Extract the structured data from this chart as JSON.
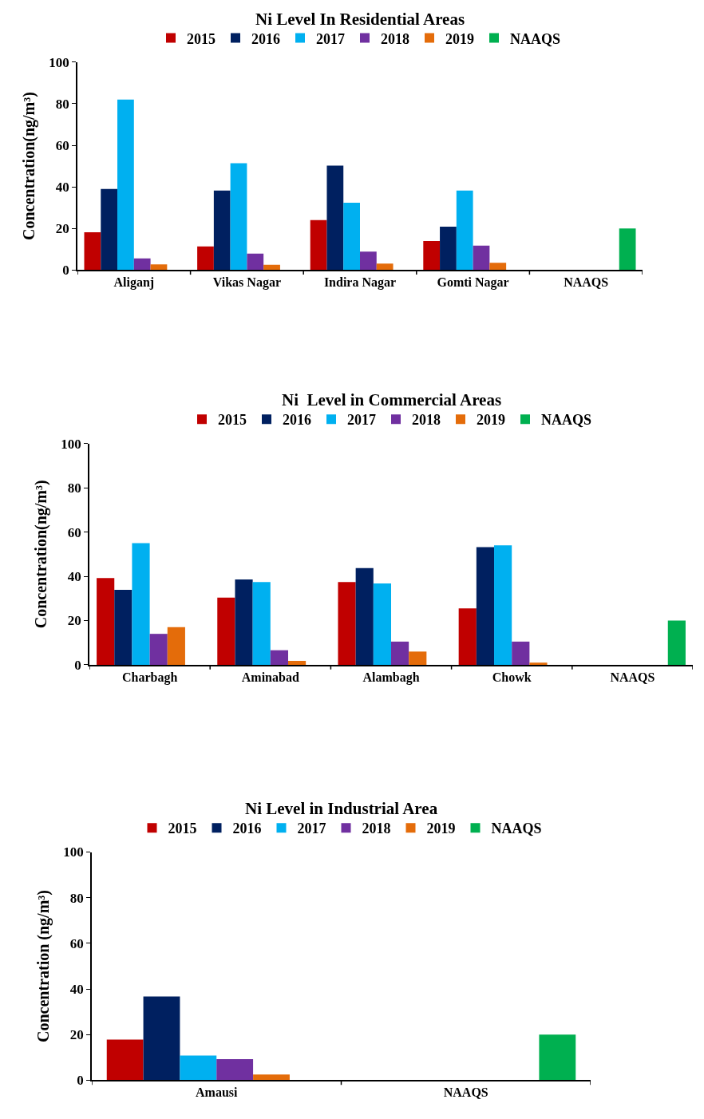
{
  "chart_data": [
    {
      "type": "bar",
      "title": "Ni Level In Residential Areas",
      "ylabel": "Concentration(ng/m³)",
      "categories": [
        "Aliganj",
        "Vikas Nagar",
        "Indira Nagar",
        "Gomti Nagar",
        "NAAQS"
      ],
      "ylim": [
        0,
        100
      ],
      "yticks": [
        0,
        20,
        40,
        60,
        80,
        100
      ],
      "legend": "top",
      "series": [
        {
          "name": "2015",
          "color": "#c00000",
          "values": [
            18.2,
            11.4,
            24,
            14,
            null
          ]
        },
        {
          "name": "2016",
          "color": "#002060",
          "values": [
            39,
            38.2,
            50.2,
            20.9,
            null
          ]
        },
        {
          "name": "2017",
          "color": "#00b0f0",
          "values": [
            82,
            51.4,
            32.4,
            38.2,
            null
          ]
        },
        {
          "name": "2018",
          "color": "#7030a0",
          "values": [
            5.6,
            7.9,
            8.9,
            11.8,
            null
          ]
        },
        {
          "name": "2019",
          "color": "#e46c0a",
          "values": [
            2.7,
            2.5,
            3.1,
            3.5,
            null
          ]
        },
        {
          "name": "NAAQS",
          "color": "#00b050",
          "values": [
            null,
            null,
            null,
            null,
            20
          ]
        }
      ]
    },
    {
      "type": "bar",
      "title": "Ni  Level in Commercial Areas",
      "ylabel": "Concentration(ng/m³)",
      "categories": [
        "Charbagh",
        "Aminabad",
        "Alambagh",
        "Chowk",
        "NAAQS"
      ],
      "ylim": [
        0,
        100
      ],
      "yticks": [
        0,
        20,
        40,
        60,
        80,
        100
      ],
      "legend": "top",
      "series": [
        {
          "name": "2015",
          "color": "#c00000",
          "values": [
            39.2,
            30.4,
            37.4,
            25.5,
            null
          ]
        },
        {
          "name": "2016",
          "color": "#002060",
          "values": [
            33.9,
            38.6,
            43.7,
            53.2,
            null
          ]
        },
        {
          "name": "2017",
          "color": "#00b0f0",
          "values": [
            55,
            37.4,
            36.8,
            54,
            null
          ]
        },
        {
          "name": "2018",
          "color": "#7030a0",
          "values": [
            14,
            6.6,
            10.5,
            10.5,
            null
          ]
        },
        {
          "name": "2019",
          "color": "#e46c0a",
          "values": [
            17,
            1.8,
            6,
            1,
            null
          ]
        },
        {
          "name": "NAAQS",
          "color": "#00b050",
          "values": [
            null,
            null,
            null,
            null,
            20
          ]
        }
      ]
    },
    {
      "type": "bar",
      "title": "Ni Level in Industrial Area",
      "ylabel": "Concentration (ng/m³)",
      "categories": [
        "Amausi",
        "NAAQS"
      ],
      "ylim": [
        0,
        100
      ],
      "yticks": [
        0,
        20,
        40,
        60,
        80,
        100
      ],
      "legend": "top",
      "series": [
        {
          "name": "2015",
          "color": "#c00000",
          "values": [
            17.8,
            null
          ]
        },
        {
          "name": "2016",
          "color": "#002060",
          "values": [
            36.7,
            null
          ]
        },
        {
          "name": "2017",
          "color": "#00b0f0",
          "values": [
            10.8,
            null
          ]
        },
        {
          "name": "2018",
          "color": "#7030a0",
          "values": [
            9.3,
            null
          ]
        },
        {
          "name": "2019",
          "color": "#e46c0a",
          "values": [
            2.5,
            null
          ]
        },
        {
          "name": "NAAQS",
          "color": "#00b050",
          "values": [
            null,
            20
          ]
        }
      ]
    }
  ]
}
